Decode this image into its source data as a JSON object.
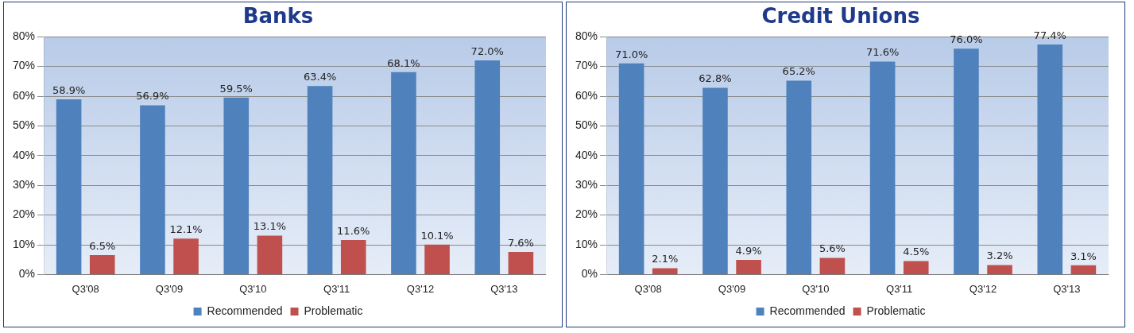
{
  "chart_data": [
    {
      "type": "bar",
      "title": "Banks",
      "categories": [
        "Q3'08",
        "Q3'09",
        "Q3'10",
        "Q3'11",
        "Q3'12",
        "Q3'13"
      ],
      "series": [
        {
          "name": "Recommended",
          "color": "#4f81bd",
          "values": [
            58.9,
            56.9,
            59.5,
            63.4,
            68.1,
            72.0
          ],
          "value_labels": [
            "58.9%",
            "56.9%",
            "59.5%",
            "63.4%",
            "68.1%",
            "72.0%"
          ]
        },
        {
          "name": "Problematic",
          "color": "#c0504d",
          "values": [
            6.5,
            12.1,
            13.1,
            11.6,
            10.1,
            7.6
          ],
          "value_labels": [
            "6.5%",
            "12.1%",
            "13.1%",
            "11.6%",
            "10.1%",
            "7.6%"
          ]
        }
      ],
      "ylim": [
        0,
        80
      ],
      "yticks": [
        {
          "value": 0,
          "label": "0%"
        },
        {
          "value": 10,
          "label": "10%"
        },
        {
          "value": 20,
          "label": "20%"
        },
        {
          "value": 30,
          "label": "30%"
        },
        {
          "value": 40,
          "label": "40%"
        },
        {
          "value": 50,
          "label": "50%"
        },
        {
          "value": 60,
          "label": "60%"
        },
        {
          "value": 70,
          "label": "70%"
        },
        {
          "value": 80,
          "label": "80%"
        }
      ],
      "grid": "y",
      "legend": "bottom"
    },
    {
      "type": "bar",
      "title": "Credit Unions",
      "categories": [
        "Q3'08",
        "Q3'09",
        "Q3'10",
        "Q3'11",
        "Q3'12",
        "Q3'13"
      ],
      "series": [
        {
          "name": "Recommended",
          "color": "#4f81bd",
          "values": [
            71.0,
            62.8,
            65.2,
            71.6,
            76.0,
            77.4
          ],
          "value_labels": [
            "71.0%",
            "62.8%",
            "65.2%",
            "71.6%",
            "76.0%",
            "77.4%"
          ]
        },
        {
          "name": "Problematic",
          "color": "#c0504d",
          "values": [
            2.1,
            4.9,
            5.6,
            4.5,
            3.2,
            3.1
          ],
          "value_labels": [
            "2.1%",
            "4.9%",
            "5.6%",
            "4.5%",
            "3.2%",
            "3.1%"
          ]
        }
      ],
      "ylim": [
        0,
        80
      ],
      "yticks": [
        {
          "value": 0,
          "label": "0%"
        },
        {
          "value": 10,
          "label": "10%"
        },
        {
          "value": 20,
          "label": "20%"
        },
        {
          "value": 30,
          "label": "30%"
        },
        {
          "value": 40,
          "label": "40%"
        },
        {
          "value": 50,
          "label": "50%"
        },
        {
          "value": 60,
          "label": "60%"
        },
        {
          "value": 70,
          "label": "70%"
        },
        {
          "value": 80,
          "label": "80%"
        }
      ],
      "grid": "y",
      "legend": "bottom"
    }
  ]
}
